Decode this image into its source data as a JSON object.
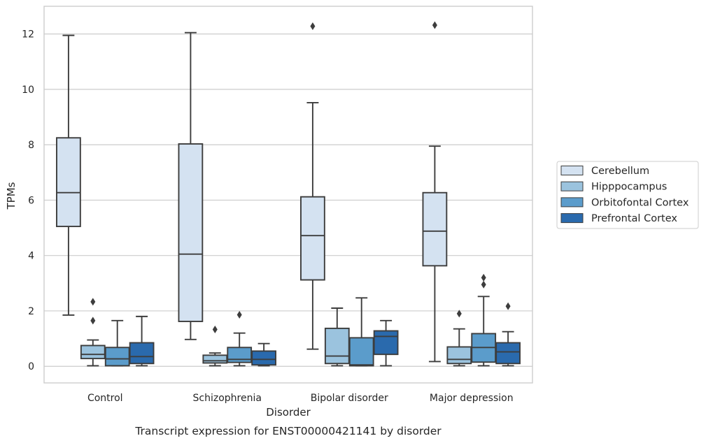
{
  "chart_data": {
    "type": "boxplot",
    "title": "",
    "caption": "Transcript expression for ENST00000421141 by disorder",
    "xlabel": "Disorder",
    "ylabel": "TPMs",
    "ylim": [
      -0.6,
      13.0
    ],
    "yticks": [
      0,
      2,
      4,
      6,
      8,
      10,
      12
    ],
    "grid": "horizontal",
    "legend_position": "right",
    "categories": [
      "Control",
      "Schizophrenia",
      "Bipolar disorder",
      "Major depression"
    ],
    "series": [
      {
        "name": "Cerebellum",
        "color": "#d4e2f1",
        "boxes": [
          {
            "whislo": 1.85,
            "q1": 5.05,
            "med": 6.27,
            "q3": 8.25,
            "whishi": 11.95,
            "fliers": []
          },
          {
            "whislo": 0.97,
            "q1": 1.62,
            "med": 4.05,
            "q3": 8.03,
            "whishi": 12.05,
            "fliers": []
          },
          {
            "whislo": 0.62,
            "q1": 3.12,
            "med": 4.72,
            "q3": 6.12,
            "whishi": 9.52,
            "fliers": [
              12.28
            ]
          },
          {
            "whislo": 0.17,
            "q1": 3.63,
            "med": 4.88,
            "q3": 6.27,
            "whishi": 7.95,
            "fliers": [
              12.32
            ]
          }
        ]
      },
      {
        "name": "Hipppocampus",
        "color": "#9bc3de",
        "boxes": [
          {
            "whislo": 0.02,
            "q1": 0.28,
            "med": 0.43,
            "q3": 0.75,
            "whishi": 0.95,
            "fliers": [
              2.33,
              1.65
            ]
          },
          {
            "whislo": 0.02,
            "q1": 0.12,
            "med": 0.2,
            "q3": 0.4,
            "whishi": 0.48,
            "fliers": [
              1.33
            ]
          },
          {
            "whislo": 0.02,
            "q1": 0.1,
            "med": 0.37,
            "q3": 1.37,
            "whishi": 2.1,
            "fliers": []
          },
          {
            "whislo": 0.02,
            "q1": 0.1,
            "med": 0.25,
            "q3": 0.7,
            "whishi": 1.35,
            "fliers": [
              1.9
            ]
          }
        ]
      },
      {
        "name": "Orbitofontal Cortex",
        "color": "#5b9ccb",
        "boxes": [
          {
            "whislo": 0.02,
            "q1": 0.02,
            "med": 0.27,
            "q3": 0.68,
            "whishi": 1.65,
            "fliers": []
          },
          {
            "whislo": 0.02,
            "q1": 0.14,
            "med": 0.25,
            "q3": 0.68,
            "whishi": 1.2,
            "fliers": [
              1.86
            ]
          },
          {
            "whislo": 0.02,
            "q1": 0.02,
            "med": 0.05,
            "q3": 1.03,
            "whishi": 2.47,
            "fliers": []
          },
          {
            "whislo": 0.02,
            "q1": 0.15,
            "med": 0.68,
            "q3": 1.18,
            "whishi": 2.52,
            "fliers": [
              2.95,
              3.2
            ]
          }
        ]
      },
      {
        "name": "Prefrontal Cortex",
        "color": "#2a6aad",
        "boxes": [
          {
            "whislo": 0.02,
            "q1": 0.1,
            "med": 0.35,
            "q3": 0.85,
            "whishi": 1.8,
            "fliers": []
          },
          {
            "whislo": 0.02,
            "q1": 0.05,
            "med": 0.25,
            "q3": 0.55,
            "whishi": 0.82,
            "fliers": []
          },
          {
            "whislo": 0.02,
            "q1": 0.43,
            "med": 1.08,
            "q3": 1.28,
            "whishi": 1.65,
            "fliers": []
          },
          {
            "whislo": 0.02,
            "q1": 0.1,
            "med": 0.52,
            "q3": 0.85,
            "whishi": 1.25,
            "fliers": [
              2.17
            ]
          }
        ]
      }
    ]
  }
}
